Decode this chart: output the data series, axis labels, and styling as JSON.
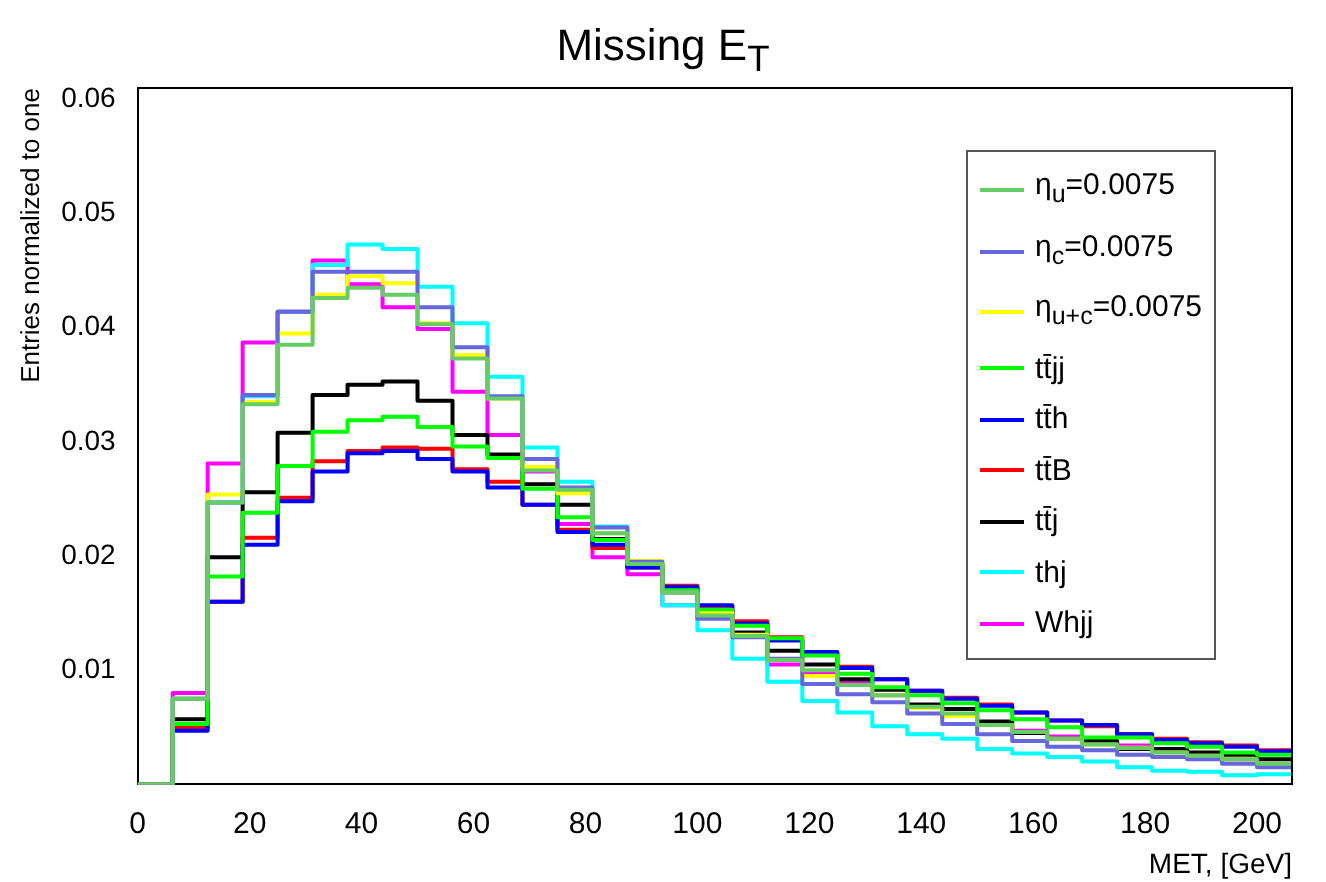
{
  "chart_data": {
    "type": "histogram",
    "title": "Missing E$_{T}$",
    "xlabel": "MET, [GeV]",
    "ylabel": "Entries normalized to one",
    "bins": [
      0,
      6.25,
      12.5,
      18.75,
      25,
      31.25,
      37.5,
      43.75,
      50,
      56.25,
      62.5,
      68.75,
      75,
      81.25,
      87.5,
      93.75,
      100,
      106.25,
      112.5,
      118.75,
      125,
      131.25,
      137.5,
      143.75,
      150,
      156.25,
      162.5,
      168.75,
      175,
      181.25,
      187.5,
      193.75,
      200,
      206.25
    ],
    "xlim": [
      0,
      206.25
    ],
    "xticks": [
      0,
      20,
      40,
      60,
      80,
      100,
      120,
      140,
      160,
      180,
      200
    ],
    "ylim": [
      0,
      0.061
    ],
    "yticks": [
      0.01,
      0.02,
      0.03,
      0.04,
      0.05,
      0.06
    ],
    "legend": "top right",
    "series": [
      {
        "name": "η$_{u}$=0.0075",
        "color": "#66cc66",
        "values": [
          0,
          0.0075,
          0.0247,
          0.0333,
          0.0385,
          0.0426,
          0.0435,
          0.0429,
          0.0403,
          0.0373,
          0.0338,
          0.0275,
          0.0258,
          0.022,
          0.0193,
          0.0168,
          0.0148,
          0.013,
          0.0109,
          0.01,
          0.0087,
          0.0078,
          0.0068,
          0.0062,
          0.0052,
          0.0046,
          0.004,
          0.0035,
          0.0032,
          0.0028,
          0.0025,
          0.0022,
          0.0018
        ]
      },
      {
        "name": "η$_{c}$=0.0075",
        "color": "#6666dd",
        "values": [
          0,
          0.0075,
          0.0247,
          0.0341,
          0.0414,
          0.0449,
          0.0449,
          0.0449,
          0.0418,
          0.0383,
          0.034,
          0.0285,
          0.026,
          0.0225,
          0.0195,
          0.0168,
          0.0145,
          0.0129,
          0.011,
          0.0088,
          0.0079,
          0.0072,
          0.0062,
          0.0053,
          0.0044,
          0.0038,
          0.0033,
          0.003,
          0.0026,
          0.0024,
          0.0022,
          0.0018,
          0.0015
        ]
      },
      {
        "name": "η$_{u+c}$=0.0075",
        "color": "#ffff00",
        "values": [
          0,
          0.0075,
          0.0254,
          0.0335,
          0.0395,
          0.0429,
          0.0445,
          0.0439,
          0.0404,
          0.0376,
          0.0338,
          0.0278,
          0.0255,
          0.022,
          0.0196,
          0.0168,
          0.015,
          0.0131,
          0.011,
          0.0095,
          0.0087,
          0.0078,
          0.0067,
          0.006,
          0.0052,
          0.0046,
          0.004,
          0.0035,
          0.0032,
          0.0028,
          0.0025,
          0.0022,
          0.0018
        ]
      },
      {
        "name": "tt̄jj",
        "color": "#00ff00",
        "values": [
          0,
          0.0053,
          0.0182,
          0.0238,
          0.0279,
          0.0309,
          0.0319,
          0.0322,
          0.0313,
          0.0296,
          0.0286,
          0.0259,
          0.0234,
          0.0214,
          0.0193,
          0.017,
          0.0153,
          0.0139,
          0.0128,
          0.0113,
          0.0097,
          0.0085,
          0.0078,
          0.0071,
          0.0065,
          0.0057,
          0.005,
          0.0041,
          0.0041,
          0.0036,
          0.0033,
          0.0028,
          0.0026
        ]
      },
      {
        "name": "tt̄h",
        "color": "#0000ff",
        "values": [
          0,
          0.0047,
          0.016,
          0.021,
          0.0248,
          0.0274,
          0.029,
          0.0292,
          0.0285,
          0.0274,
          0.026,
          0.0245,
          0.0221,
          0.021,
          0.019,
          0.0173,
          0.0157,
          0.0141,
          0.0126,
          0.0116,
          0.0102,
          0.0092,
          0.0082,
          0.0075,
          0.0069,
          0.0063,
          0.0056,
          0.0052,
          0.0044,
          0.0039,
          0.0036,
          0.0033,
          0.0029
        ]
      },
      {
        "name": "tt̄B",
        "color": "#ff0000",
        "values": [
          0,
          0.005,
          0.016,
          0.0216,
          0.0251,
          0.0283,
          0.0292,
          0.0295,
          0.0294,
          0.0276,
          0.0265,
          0.0245,
          0.0223,
          0.0207,
          0.019,
          0.0174,
          0.0156,
          0.0143,
          0.0129,
          0.0115,
          0.0103,
          0.0092,
          0.0082,
          0.0076,
          0.007,
          0.0063,
          0.0056,
          0.0051,
          0.0044,
          0.004,
          0.0037,
          0.0034,
          0.003
        ]
      },
      {
        "name": "tt̄j",
        "color": "#000000",
        "values": [
          0,
          0.0057,
          0.0199,
          0.0256,
          0.0308,
          0.0341,
          0.035,
          0.0353,
          0.0336,
          0.0306,
          0.0289,
          0.0263,
          0.0245,
          0.0215,
          0.0192,
          0.0171,
          0.015,
          0.0133,
          0.0117,
          0.0105,
          0.0092,
          0.0083,
          0.007,
          0.0066,
          0.0055,
          0.0045,
          0.004,
          0.0038,
          0.0031,
          0.0031,
          0.0028,
          0.0026,
          0.0022
        ]
      },
      {
        "name": "thj",
        "color": "#00ffff",
        "values": [
          0,
          0.0075,
          0.0247,
          0.034,
          0.0414,
          0.0455,
          0.0473,
          0.0469,
          0.0436,
          0.0404,
          0.0357,
          0.0295,
          0.0265,
          0.0226,
          0.0193,
          0.0157,
          0.0135,
          0.011,
          0.009,
          0.0073,
          0.0063,
          0.0051,
          0.0044,
          0.004,
          0.0031,
          0.0027,
          0.0024,
          0.002,
          0.0015,
          0.0012,
          0.0011,
          0.0008,
          0.0009
        ]
      },
      {
        "name": "Whjj",
        "color": "#ff00ff",
        "values": [
          0,
          0.008,
          0.0281,
          0.0387,
          0.0414,
          0.0459,
          0.0438,
          0.0418,
          0.0399,
          0.0344,
          0.0306,
          0.0274,
          0.0228,
          0.0199,
          0.0184,
          0.0157,
          0.0153,
          0.0131,
          0.0105,
          0.0098,
          0.009,
          0.0078,
          0.0068,
          0.006,
          0.0052,
          0.0047,
          0.0042,
          0.0038,
          0.0034,
          0.0031,
          0.0025,
          0.0022,
          0.0018
        ]
      }
    ]
  }
}
